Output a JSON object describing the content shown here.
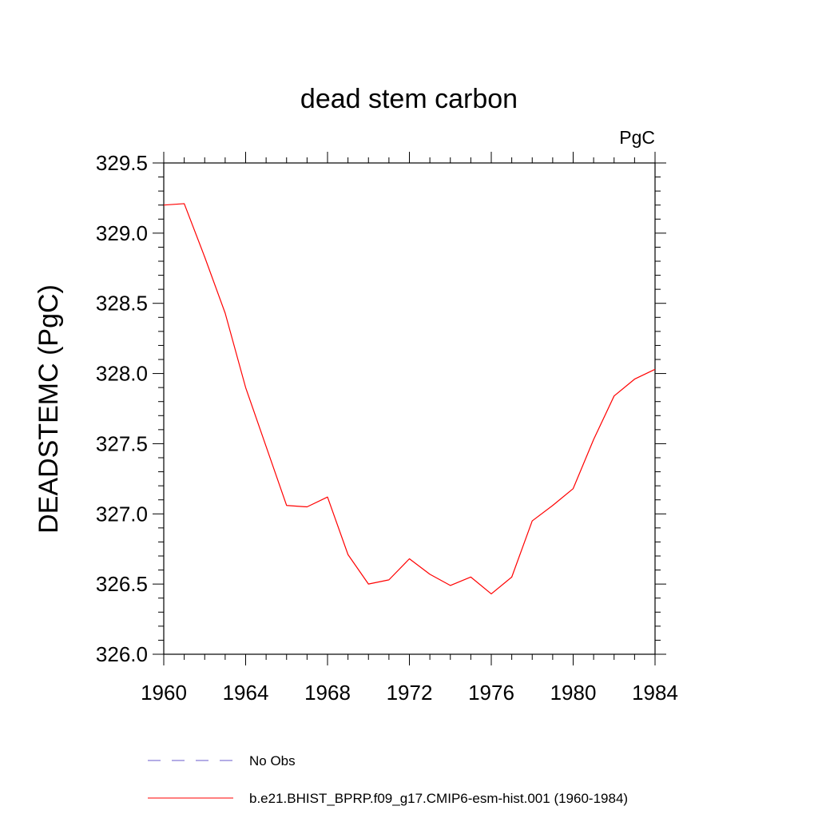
{
  "chart_data": {
    "type": "line",
    "title": "dead stem carbon",
    "units": "PgC",
    "ylabel": "DEADSTEMC  (PgC)",
    "xlabel": "",
    "xlim": [
      1960,
      1984
    ],
    "ylim": [
      326.0,
      329.5
    ],
    "x_ticks": [
      1960,
      1964,
      1968,
      1972,
      1976,
      1980,
      1984
    ],
    "x_tick_labels": [
      "1960",
      "1964",
      "1968",
      "1972",
      "1976",
      "1980",
      "1984"
    ],
    "y_ticks": [
      326.0,
      326.5,
      327.0,
      327.5,
      328.0,
      328.5,
      329.0,
      329.5
    ],
    "y_tick_labels": [
      "326.0",
      "326.5",
      "327.0",
      "327.5",
      "328.0",
      "328.5",
      "329.0",
      "329.5"
    ],
    "grid": false,
    "legend_position": "bottom",
    "x": [
      1960,
      1961,
      1962,
      1963,
      1964,
      1965,
      1966,
      1967,
      1968,
      1969,
      1970,
      1971,
      1972,
      1973,
      1974,
      1975,
      1976,
      1977,
      1978,
      1979,
      1980,
      1981,
      1982,
      1983,
      1984
    ],
    "series": [
      {
        "name": "b.e21.BHIST_BPRP.f09_g17.CMIP6-esm-hist.001 (1960-1984)",
        "color": "#ff0000",
        "style": "solid",
        "values": [
          329.2,
          329.21,
          328.83,
          328.43,
          327.9,
          327.48,
          327.06,
          327.05,
          327.12,
          326.71,
          326.5,
          326.53,
          326.68,
          326.57,
          326.49,
          326.55,
          326.43,
          326.55,
          326.95,
          327.06,
          327.18,
          327.53,
          327.84,
          327.96,
          328.03
        ]
      }
    ],
    "legend": [
      {
        "label": "No Obs",
        "color": "#6a5acd",
        "style": "dashed"
      },
      {
        "label": "b.e21.BHIST_BPRP.f09_g17.CMIP6-esm-hist.001 (1960-1984)",
        "color": "#ff0000",
        "style": "solid"
      }
    ]
  }
}
